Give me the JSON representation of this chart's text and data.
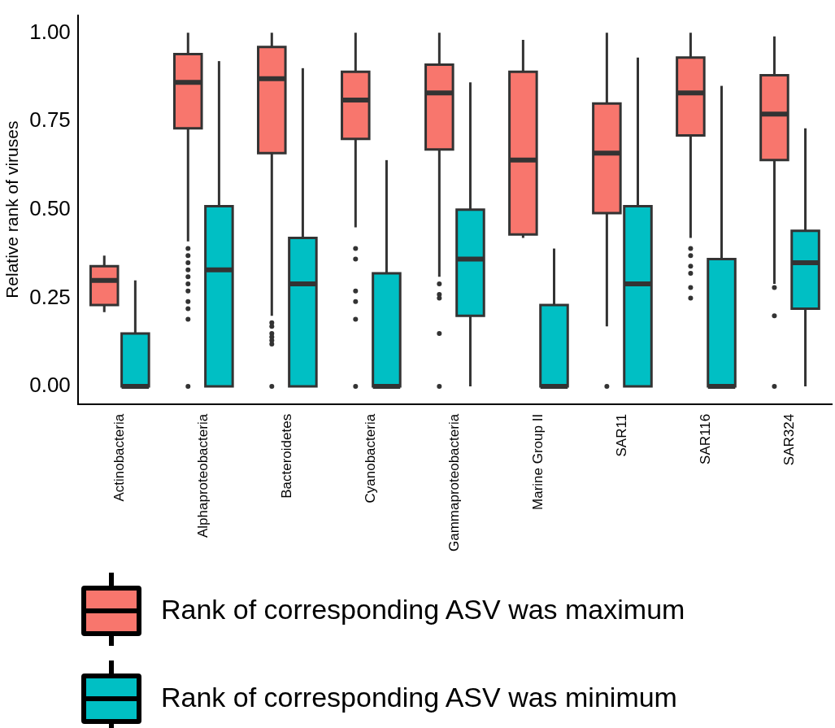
{
  "chart_data": {
    "type": "box",
    "ylabel": "Relative rank of viruses",
    "categories": [
      "Actinobacteria",
      "Alphaproteobacteria",
      "Bacteroidetes",
      "Cyanobacteria",
      "Gammaproteobacteria",
      "Marine Group II",
      "SAR11",
      "SAR116",
      "SAR324"
    ],
    "ylim": [
      -0.05,
      1.05
    ],
    "yticks": [
      {
        "value": 0,
        "label": "0.00"
      },
      {
        "value": 0.25,
        "label": "0.25"
      },
      {
        "value": 0.5,
        "label": "0.50"
      },
      {
        "value": 0.75,
        "label": "0.75"
      },
      {
        "value": 1,
        "label": "1.00"
      }
    ],
    "grid": false,
    "legend": "bottom",
    "series": [
      {
        "name": "Rank of corresponding ASV was maximum",
        "color": "#f8766d",
        "boxes": [
          {
            "low": 0.21,
            "q1": 0.23,
            "median": 0.3,
            "q3": 0.34,
            "high": 0.37
          },
          {
            "low": 0.41,
            "q1": 0.73,
            "median": 0.86,
            "q3": 0.94,
            "high": 1,
            "outliers": [
              0.39,
              0.37,
              0.35,
              0.33,
              0.31,
              0.29,
              0.27,
              0.24,
              0.22,
              0.19,
              0
            ]
          },
          {
            "low": 0.2,
            "q1": 0.66,
            "median": 0.87,
            "q3": 0.96,
            "high": 1,
            "outliers": [
              0.18,
              0.17,
              0.15,
              0.14,
              0.13,
              0.12,
              0
            ]
          },
          {
            "low": 0.45,
            "q1": 0.7,
            "median": 0.81,
            "q3": 0.89,
            "high": 1,
            "outliers": [
              0.39,
              0.36,
              0.27,
              0.24,
              0.19,
              0
            ]
          },
          {
            "low": 0.31,
            "q1": 0.67,
            "median": 0.83,
            "q3": 0.91,
            "high": 1,
            "outliers": [
              0.29,
              0.26,
              0.25,
              0.15,
              0
            ]
          },
          {
            "low": 0.42,
            "q1": 0.43,
            "median": 0.64,
            "q3": 0.89,
            "high": 0.98
          },
          {
            "low": 0.17,
            "q1": 0.49,
            "median": 0.66,
            "q3": 0.8,
            "high": 1,
            "outliers": [
              0
            ]
          },
          {
            "low": 0.42,
            "q1": 0.71,
            "median": 0.83,
            "q3": 0.93,
            "high": 1,
            "outliers": [
              0.39,
              0.37,
              0.34,
              0.32,
              0.28,
              0.25
            ]
          },
          {
            "low": 0.29,
            "q1": 0.64,
            "median": 0.77,
            "q3": 0.88,
            "high": 0.99,
            "outliers": [
              0.28,
              0.2,
              0
            ]
          }
        ]
      },
      {
        "name": "Rank of corresponding ASV was minimum",
        "color": "#00bfc4",
        "boxes": [
          {
            "low": 0,
            "q1": 0,
            "median": 0,
            "q3": 0.15,
            "high": 0.3
          },
          {
            "low": 0,
            "q1": 0,
            "median": 0.33,
            "q3": 0.51,
            "high": 0.92
          },
          {
            "low": 0,
            "q1": 0,
            "median": 0.29,
            "q3": 0.42,
            "high": 0.9
          },
          {
            "low": 0,
            "q1": 0,
            "median": 0,
            "q3": 0.32,
            "high": 0.64
          },
          {
            "low": 0,
            "q1": 0.2,
            "median": 0.36,
            "q3": 0.5,
            "high": 0.86
          },
          {
            "low": 0,
            "q1": 0,
            "median": 0,
            "q3": 0.23,
            "high": 0.39
          },
          {
            "low": 0,
            "q1": 0,
            "median": 0.29,
            "q3": 0.51,
            "high": 0.93
          },
          {
            "low": 0,
            "q1": 0,
            "median": 0,
            "q3": 0.36,
            "high": 0.85
          },
          {
            "low": 0,
            "q1": 0.22,
            "median": 0.35,
            "q3": 0.44,
            "high": 0.73
          }
        ]
      }
    ]
  }
}
